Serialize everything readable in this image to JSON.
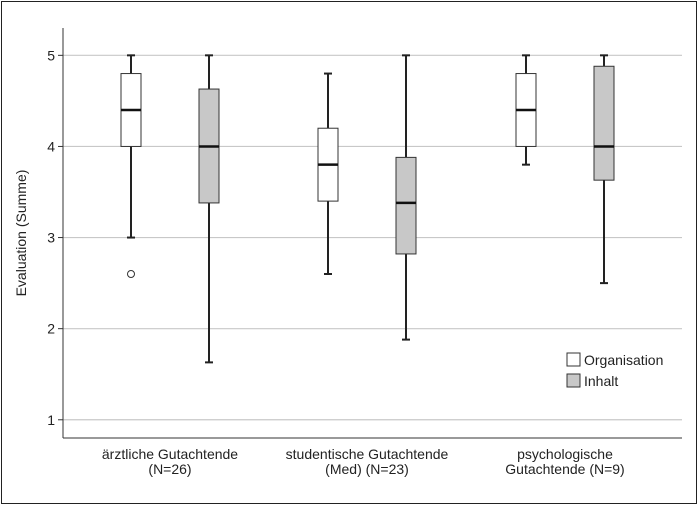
{
  "chart_data": {
    "type": "boxplot",
    "ylabel": "Evaluation (Summe)",
    "ylim": [
      0.8,
      5.3
    ],
    "yticks": [
      "1",
      "2",
      "3",
      "4",
      "5"
    ],
    "grid": "horizontal",
    "legend_placement": "bottom-right",
    "categories": [
      [
        "ärztliche Gutachtende",
        "(N=26)"
      ],
      [
        "studentische Gutachtende",
        "(Med) (N=23)"
      ],
      [
        "psychologische",
        "Gutachtende (N=9)"
      ]
    ],
    "series": [
      {
        "name": "Organisation",
        "color": "#ffffff",
        "boxes": [
          {
            "min": 3.0,
            "q1": 4.0,
            "median": 4.4,
            "q3": 4.8,
            "max": 5.0,
            "outliers": [
              2.6
            ]
          },
          {
            "min": 2.6,
            "q1": 3.4,
            "median": 3.8,
            "q3": 4.2,
            "max": 4.8,
            "outliers": []
          },
          {
            "min": 3.8,
            "q1": 4.0,
            "median": 4.4,
            "q3": 4.8,
            "max": 5.0,
            "outliers": []
          }
        ]
      },
      {
        "name": "Inhalt",
        "color": "#c8c8c8",
        "boxes": [
          {
            "min": 1.63,
            "q1": 3.38,
            "median": 4.0,
            "q3": 4.63,
            "max": 5.0,
            "outliers": []
          },
          {
            "min": 1.88,
            "q1": 2.82,
            "median": 3.38,
            "q3": 3.88,
            "max": 5.0,
            "outliers": []
          },
          {
            "min": 2.5,
            "q1": 3.63,
            "median": 4.0,
            "q3": 4.88,
            "max": 5.0,
            "outliers": []
          }
        ]
      }
    ]
  }
}
